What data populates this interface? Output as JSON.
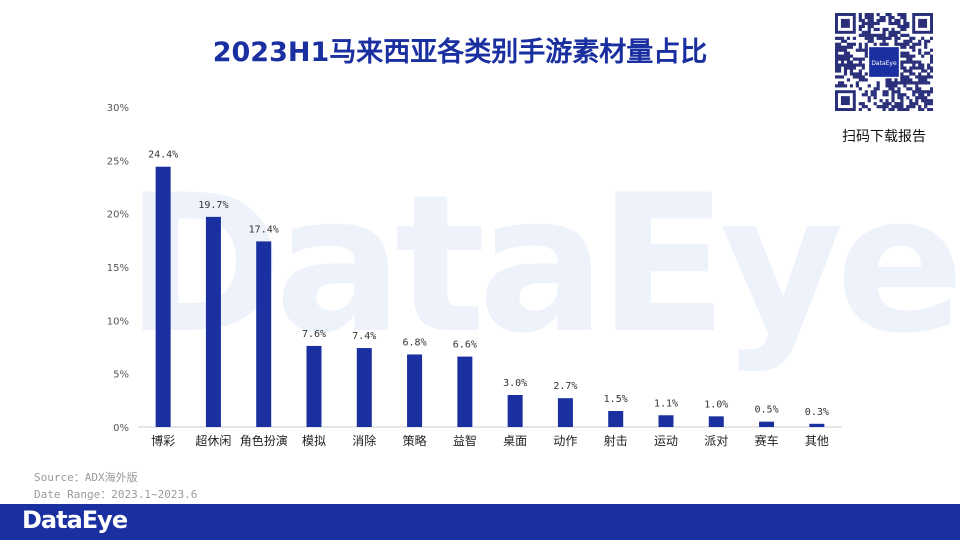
{
  "page": {
    "title": "2023H1马来西亚各类别手游素材量占比",
    "watermark": "DataEye",
    "qr_label": "扫码下载报告",
    "qr_center_text": "DataEye",
    "source_line1": "Source：ADX海外版",
    "source_line2": "Date Range：2023.1~2023.6",
    "footer_logo": "DataEye"
  },
  "colors": {
    "bar": "#1a2fa0",
    "title": "#1a2fa0",
    "footer": "#1a2fa0",
    "axis": "#cccccc"
  },
  "chart_data": {
    "type": "bar",
    "title": "2023H1马来西亚各类别手游素材量占比",
    "categories": [
      "博彩",
      "超休闲",
      "角色扮演",
      "模拟",
      "消除",
      "策略",
      "益智",
      "桌面",
      "动作",
      "射击",
      "运动",
      "派对",
      "赛车",
      "其他"
    ],
    "values": [
      24.4,
      19.7,
      17.4,
      7.6,
      7.4,
      6.8,
      6.6,
      3.0,
      2.7,
      1.5,
      1.1,
      1.0,
      0.5,
      0.3
    ],
    "value_labels": [
      "24.4%",
      "19.7%",
      "17.4%",
      "7.6%",
      "7.4%",
      "6.8%",
      "6.6%",
      "3.0%",
      "2.7%",
      "1.5%",
      "1.1%",
      "1.0%",
      "0.5%",
      "0.3%"
    ],
    "yticks": [
      "0%",
      "5%",
      "10%",
      "15%",
      "20%",
      "25%",
      "30%"
    ],
    "ylim": [
      0,
      30
    ],
    "xlabel": "",
    "ylabel": "",
    "grid": false,
    "legend": "none"
  }
}
